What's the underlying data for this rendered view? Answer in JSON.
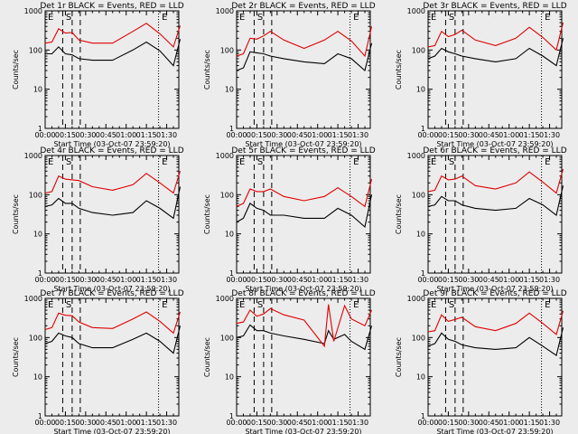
{
  "page": {
    "background": "#ececec"
  },
  "style": {
    "events_color": "#000000",
    "lld_color": "#e00000",
    "axis_color": "#000000"
  },
  "shared": {
    "xlabel": "Start Time (03-Oct-07 23:59:20)",
    "ylabel": "Counts/sec",
    "x_ticks": [
      "00:00",
      "00:15",
      "00:30",
      "00:45",
      "01:00",
      "01:15",
      "01:30"
    ],
    "y_ticks": [
      "1",
      "10",
      "100",
      "1000"
    ],
    "markers": {
      "E": "E",
      "S": "S"
    }
  },
  "chart_data": [
    {
      "type": "line",
      "title": "Det 1r BLACK = Events, RED = LLD",
      "xlim": [
        "00:00",
        "01:39"
      ],
      "ylim": [
        1,
        1000
      ],
      "yscale": "log",
      "x_minutes": [
        0,
        5,
        10,
        15,
        20,
        25,
        35,
        50,
        65,
        75,
        85,
        95,
        100
      ],
      "series": [
        {
          "name": "BLACK = Events",
          "values": [
            80,
            80,
            120,
            80,
            75,
            60,
            55,
            55,
            100,
            160,
            95,
            40,
            190
          ]
        },
        {
          "name": "RED = LLD",
          "values": [
            150,
            160,
            350,
            270,
            280,
            180,
            150,
            150,
            300,
            480,
            260,
            120,
            420
          ]
        }
      ]
    },
    {
      "type": "line",
      "title": "Det 2r BLACK = Events, RED = LLD",
      "xlim": [
        "00:00",
        "01:39"
      ],
      "ylim": [
        1,
        1000
      ],
      "yscale": "log",
      "x_minutes": [
        0,
        5,
        10,
        15,
        20,
        25,
        35,
        50,
        65,
        75,
        85,
        95,
        100
      ],
      "series": [
        {
          "name": "BLACK = Events",
          "values": [
            30,
            35,
            90,
            85,
            80,
            70,
            60,
            50,
            45,
            80,
            60,
            30,
            150
          ]
        },
        {
          "name": "RED = LLD",
          "values": [
            70,
            80,
            200,
            190,
            230,
            300,
            180,
            110,
            180,
            300,
            170,
            70,
            400
          ]
        }
      ]
    },
    {
      "type": "line",
      "title": "Det 3r BLACK = Events, RED = LLD",
      "xlim": [
        "00:00",
        "01:39"
      ],
      "ylim": [
        1,
        1000
      ],
      "yscale": "log",
      "x_minutes": [
        0,
        5,
        10,
        15,
        20,
        25,
        35,
        50,
        65,
        75,
        85,
        95,
        100
      ],
      "series": [
        {
          "name": "BLACK = Events",
          "values": [
            60,
            70,
            110,
            90,
            80,
            70,
            60,
            50,
            60,
            110,
            70,
            40,
            200
          ]
        },
        {
          "name": "RED = LLD",
          "values": [
            120,
            130,
            300,
            220,
            250,
            320,
            180,
            130,
            200,
            380,
            210,
            100,
            500
          ]
        }
      ]
    },
    {
      "type": "line",
      "title": "Det 4r BLACK = Events, RED = LLD",
      "xlim": [
        "00:00",
        "01:39"
      ],
      "ylim": [
        1,
        1000
      ],
      "yscale": "log",
      "x_minutes": [
        0,
        5,
        10,
        15,
        20,
        25,
        35,
        50,
        65,
        75,
        85,
        95,
        100
      ],
      "series": [
        {
          "name": "BLACK = Events",
          "values": [
            50,
            55,
            80,
            60,
            60,
            45,
            35,
            30,
            35,
            70,
            45,
            25,
            160
          ]
        },
        {
          "name": "RED = LLD",
          "values": [
            110,
            120,
            300,
            250,
            240,
            230,
            160,
            130,
            180,
            350,
            200,
            110,
            400
          ]
        }
      ]
    },
    {
      "type": "line",
      "title": "Det 5r BLACK = Events, RED = LLD",
      "xlim": [
        "00:00",
        "01:39"
      ],
      "ylim": [
        1,
        1000
      ],
      "yscale": "log",
      "x_minutes": [
        0,
        5,
        10,
        15,
        20,
        25,
        35,
        50,
        65,
        75,
        85,
        95,
        100
      ],
      "series": [
        {
          "name": "BLACK = Events",
          "values": [
            20,
            25,
            60,
            45,
            40,
            30,
            30,
            25,
            25,
            45,
            30,
            15,
            100
          ]
        },
        {
          "name": "RED = LLD",
          "values": [
            50,
            60,
            140,
            120,
            120,
            140,
            90,
            70,
            90,
            150,
            90,
            50,
            250
          ]
        }
      ]
    },
    {
      "type": "line",
      "title": "Det 6r BLACK = Events, RED = LLD",
      "xlim": [
        "00:00",
        "01:39"
      ],
      "ylim": [
        1,
        1000
      ],
      "yscale": "log",
      "x_minutes": [
        0,
        5,
        10,
        15,
        20,
        25,
        35,
        50,
        65,
        75,
        85,
        95,
        100
      ],
      "series": [
        {
          "name": "BLACK = Events",
          "values": [
            50,
            55,
            90,
            70,
            70,
            55,
            45,
            40,
            45,
            80,
            55,
            30,
            170
          ]
        },
        {
          "name": "RED = LLD",
          "values": [
            120,
            130,
            300,
            240,
            250,
            300,
            170,
            140,
            200,
            380,
            210,
            110,
            450
          ]
        }
      ]
    },
    {
      "type": "line",
      "title": "Det 7r BLACK = Events, RED = LLD",
      "xlim": [
        "00:00",
        "01:39"
      ],
      "ylim": [
        1,
        1000
      ],
      "yscale": "log",
      "x_minutes": [
        0,
        5,
        10,
        15,
        20,
        25,
        35,
        50,
        65,
        75,
        85,
        95,
        100
      ],
      "series": [
        {
          "name": "BLACK = Events",
          "values": [
            70,
            80,
            130,
            110,
            100,
            70,
            55,
            55,
            90,
            130,
            80,
            40,
            200
          ]
        },
        {
          "name": "RED = LLD",
          "values": [
            160,
            180,
            420,
            370,
            360,
            250,
            180,
            170,
            300,
            450,
            260,
            130,
            450
          ]
        }
      ]
    },
    {
      "type": "line",
      "title": "Det 8r BLACK = Events, RED = LLD",
      "xlim": [
        "00:00",
        "01:39"
      ],
      "ylim": [
        1,
        1000
      ],
      "yscale": "log",
      "x_minutes": [
        0,
        5,
        10,
        15,
        20,
        25,
        35,
        50,
        65,
        68,
        72,
        80,
        85,
        95,
        100
      ],
      "series": [
        {
          "name": "BLACK = Events",
          "values": [
            100,
            110,
            210,
            150,
            150,
            130,
            110,
            90,
            70,
            150,
            90,
            120,
            80,
            50,
            200
          ]
        },
        {
          "name": "RED = LLD",
          "values": [
            230,
            250,
            500,
            350,
            400,
            550,
            380,
            280,
            60,
            700,
            80,
            650,
            300,
            200,
            500
          ]
        }
      ]
    },
    {
      "type": "line",
      "title": "Det 9r BLACK = Events, RED = LLD",
      "xlim": [
        "00:00",
        "01:39"
      ],
      "ylim": [
        1,
        1000
      ],
      "yscale": "log",
      "x_minutes": [
        0,
        5,
        10,
        15,
        20,
        25,
        35,
        50,
        65,
        75,
        85,
        95,
        100
      ],
      "series": [
        {
          "name": "BLACK = Events",
          "values": [
            60,
            70,
            130,
            90,
            80,
            65,
            55,
            50,
            55,
            100,
            60,
            35,
            180
          ]
        },
        {
          "name": "RED = LLD",
          "values": [
            140,
            150,
            380,
            260,
            290,
            330,
            190,
            150,
            230,
            420,
            230,
            120,
            480
          ]
        }
      ]
    }
  ]
}
